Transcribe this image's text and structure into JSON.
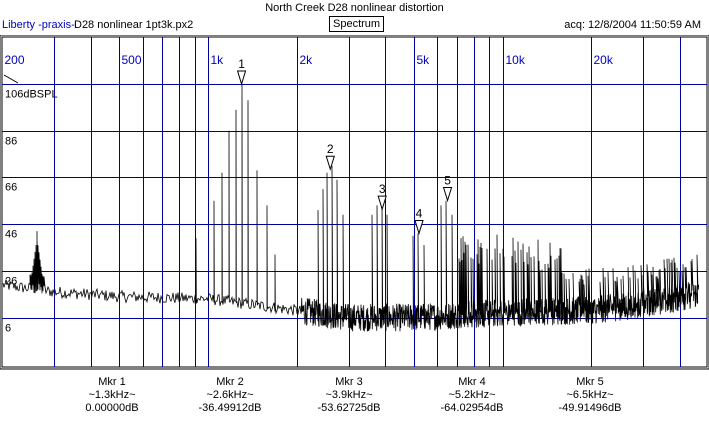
{
  "header": {
    "title": "North Creek D28 nonlinear distortion",
    "brand": "Liberty -praxis-",
    "file": "D28 nonlinear 1pt3k.px2",
    "mode": "Spectrum",
    "acq": "acq: 12/8/2004 11:50:59 AM"
  },
  "colors": {
    "grid": "#0000a0",
    "trace": "#000000",
    "label": "#0000c0"
  },
  "chart_data": {
    "type": "line",
    "title": "North Creek D28 nonlinear distortion",
    "xscale": "log",
    "xlim": [
      200,
      49000
    ],
    "ylim": [
      -14,
      126
    ],
    "x_ticks": [
      {
        "v": 200,
        "label": "200"
      },
      {
        "v": 300
      },
      {
        "v": 400
      },
      {
        "v": 500,
        "label": "500"
      },
      {
        "v": 600
      },
      {
        "v": 700
      },
      {
        "v": 800
      },
      {
        "v": 900
      },
      {
        "v": 1000,
        "label": "1k"
      },
      {
        "v": 2000,
        "label": "2k"
      },
      {
        "v": 3000
      },
      {
        "v": 4000
      },
      {
        "v": 5000,
        "label": "5k"
      },
      {
        "v": 6000
      },
      {
        "v": 7000
      },
      {
        "v": 8000
      },
      {
        "v": 9000
      },
      {
        "v": 10000,
        "label": "10k"
      },
      {
        "v": 20000,
        "label": "20k"
      },
      {
        "v": 30000
      },
      {
        "v": 40000
      }
    ],
    "y_ticks": [
      {
        "v": 106,
        "label": "106dBSPL"
      },
      {
        "v": 86,
        "label": "86"
      },
      {
        "v": 66,
        "label": "66"
      },
      {
        "v": 46,
        "label": "46"
      },
      {
        "v": 26,
        "label": "26"
      },
      {
        "v": 6,
        "label": "6"
      }
    ],
    "noise_floor": [
      [
        200,
        20
      ],
      [
        300,
        17
      ],
      [
        500,
        15
      ],
      [
        1000,
        14
      ],
      [
        2000,
        9
      ],
      [
        3000,
        6
      ],
      [
        5000,
        6
      ],
      [
        10000,
        8
      ],
      [
        20000,
        9
      ],
      [
        35000,
        13
      ],
      [
        49000,
        17
      ]
    ],
    "peaks": [
      [
        263,
        43
      ],
      [
        910,
        40
      ],
      [
        1048,
        56
      ],
      [
        1116,
        68
      ],
      [
        1178,
        86
      ],
      [
        1244,
        95
      ],
      [
        1300,
        106
      ],
      [
        1368,
        99
      ],
      [
        1466,
        69
      ],
      [
        1586,
        54
      ],
      [
        1688,
        33
      ],
      [
        2360,
        52
      ],
      [
        2456,
        61
      ],
      [
        2534,
        68
      ],
      [
        2636,
        71
      ],
      [
        2742,
        65
      ],
      [
        2872,
        50
      ],
      [
        3604,
        50
      ],
      [
        3740,
        54
      ],
      [
        3894,
        54
      ],
      [
        4046,
        50
      ],
      [
        4966,
        41
      ],
      [
        5164,
        42
      ],
      [
        5408,
        37
      ],
      [
        6180,
        54
      ],
      [
        6428,
        56
      ],
      [
        6730,
        50
      ]
    ],
    "markers": [
      {
        "id": "1",
        "label": "Mkr 1",
        "freq": "~1.3kHz~",
        "value": "0.00000dB",
        "f": 1300,
        "db": 106
      },
      {
        "id": "2",
        "label": "Mkr 2",
        "freq": "~2.6kHz~",
        "value": "-36.49912dB",
        "f": 2600,
        "db": 69.5
      },
      {
        "id": "3",
        "label": "Mkr 3",
        "freq": "~3.9kHz~",
        "value": "-53.62725dB",
        "f": 3900,
        "db": 52.4
      },
      {
        "id": "4",
        "label": "Mkr 4",
        "freq": "~5.2kHz~",
        "value": "-64.02954dB",
        "f": 5200,
        "db": 42
      },
      {
        "id": "5",
        "label": "Mkr 5",
        "freq": "~6.5kHz~",
        "value": "-49.91496dB",
        "f": 6500,
        "db": 56.1
      }
    ]
  }
}
